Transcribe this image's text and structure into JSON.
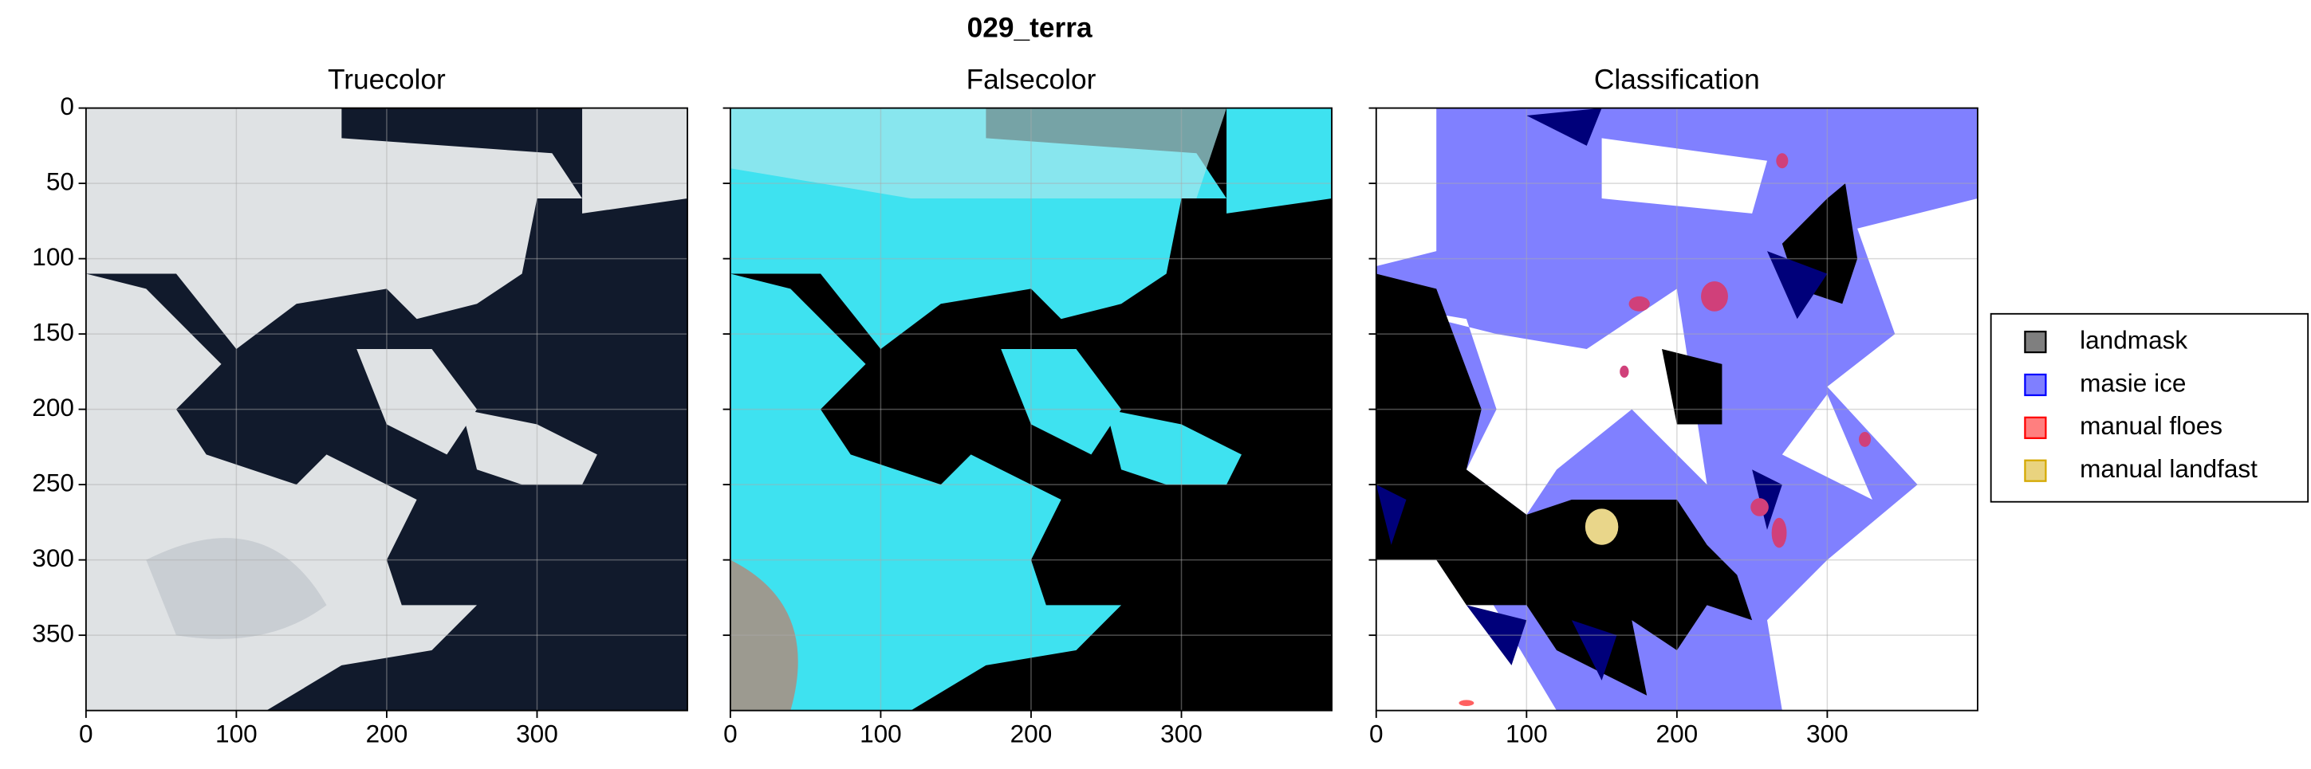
{
  "chart_data": {
    "type": "image",
    "title": "029_terra",
    "panels": [
      {
        "title": "Truecolor"
      },
      {
        "title": "Falsecolor"
      },
      {
        "title": "Classification"
      }
    ],
    "xlim": [
      0,
      400
    ],
    "xticks": [
      0,
      100,
      200,
      300
    ],
    "ylim": [
      0,
      400
    ],
    "yticks": [
      0,
      50,
      100,
      150,
      200,
      250,
      300,
      350
    ],
    "grid": true,
    "legend": [
      {
        "name": "landmask",
        "color": "#000000"
      },
      {
        "name": "masie ice",
        "color": "#0000ff"
      },
      {
        "name": "manual floes",
        "color": "#ff0000"
      },
      {
        "name": "manual landfast",
        "color": "#d4a800"
      }
    ]
  }
}
